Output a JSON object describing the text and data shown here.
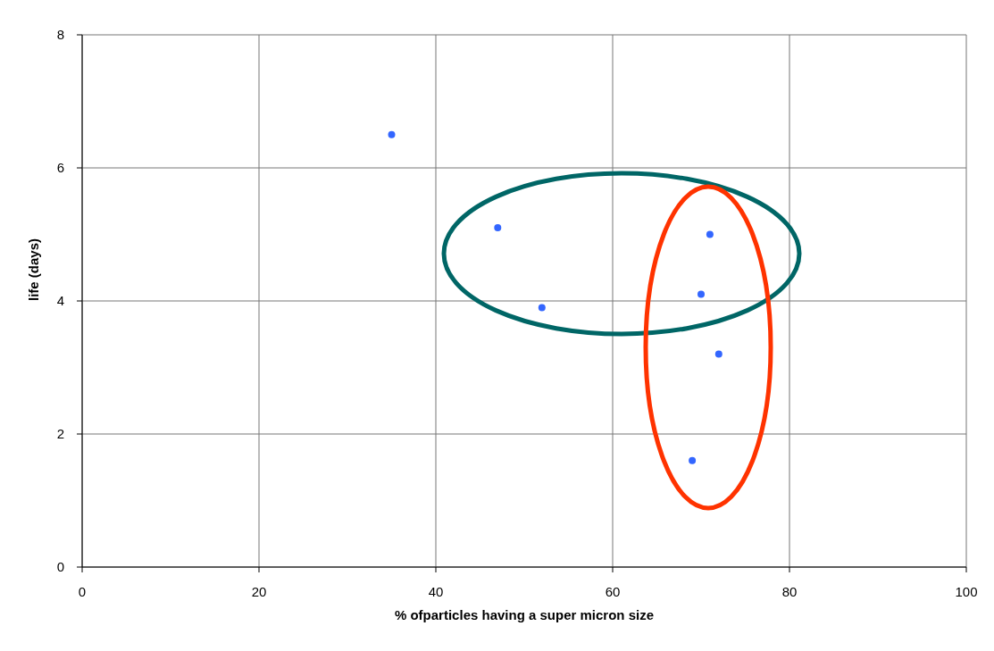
{
  "chart_data": {
    "type": "scatter",
    "xlabel": "% ofparticles having a  super micron size",
    "ylabel": "life (days)",
    "x": [
      35,
      47,
      52,
      69,
      70,
      71,
      72
    ],
    "series": [
      {
        "color": "#3366ff",
        "values": [
          6.5,
          5.1,
          3.9,
          1.6,
          4.1,
          5.0,
          3.2
        ]
      }
    ],
    "xlim": [
      0,
      100
    ],
    "xticks": [
      0,
      20,
      40,
      60,
      80,
      100
    ],
    "ylim": [
      0,
      8
    ],
    "yticks": [
      0,
      2,
      4,
      6,
      8
    ],
    "grid": true,
    "marker": "circle",
    "legend": false
  }
}
